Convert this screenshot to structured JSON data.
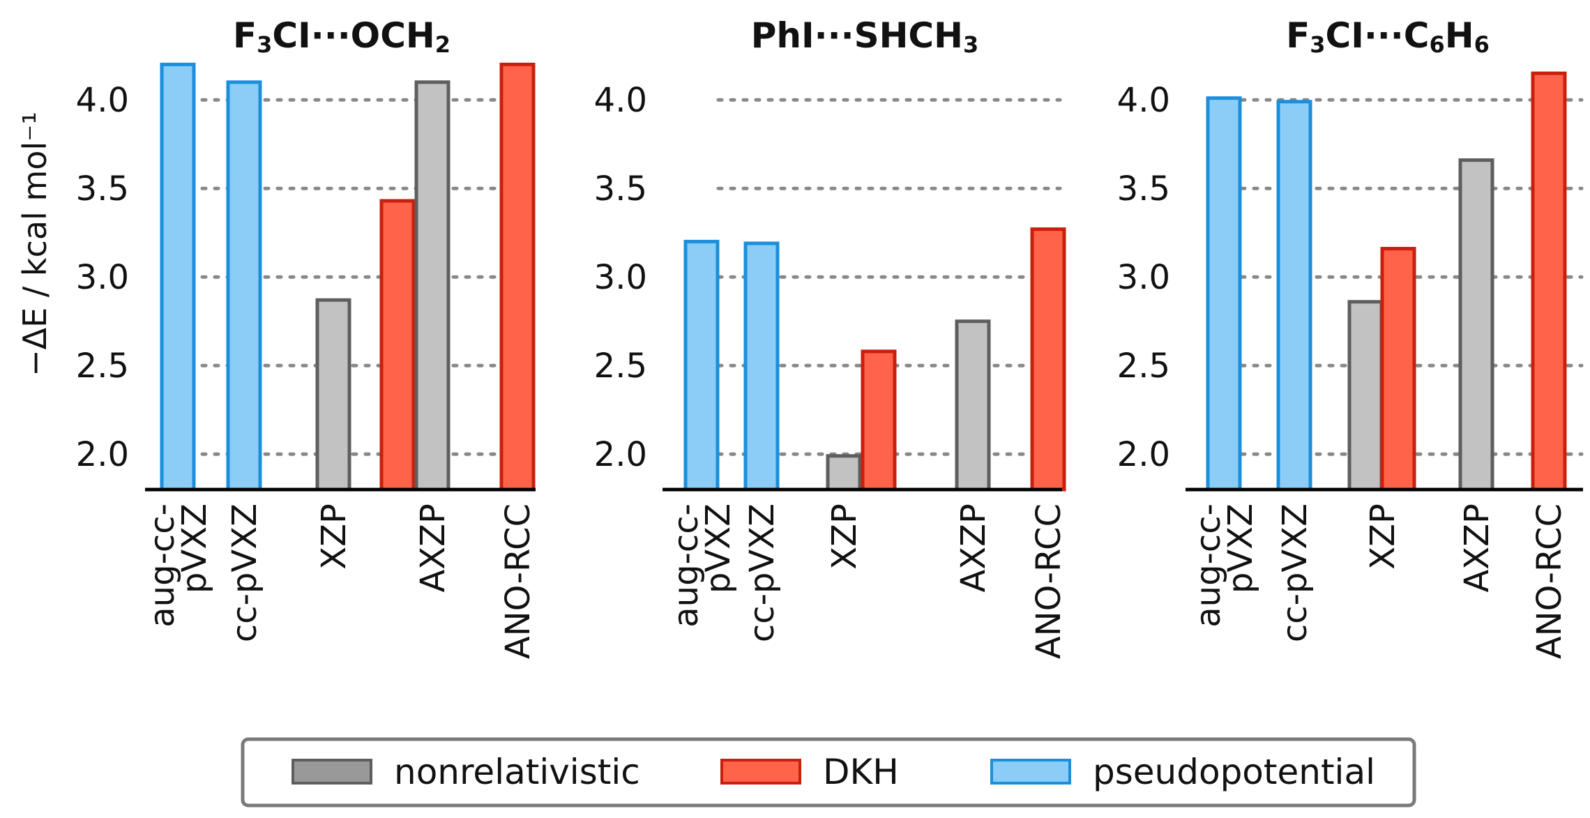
{
  "chart_data": {
    "type": "bar",
    "ylabel": "−ΔE / kcal mol⁻¹",
    "ylim": [
      1.8,
      4.25
    ],
    "yticks": [
      "2.0",
      "2.5",
      "3.0",
      "3.5",
      "4.0"
    ],
    "grid": true,
    "categories": [
      {
        "lines": [
          "aug-cc-",
          "pVXZ"
        ]
      },
      {
        "lines": [
          "cc-pVXZ"
        ]
      },
      {
        "lines": [
          "XZP"
        ]
      },
      {
        "lines": [
          "AXZP"
        ]
      },
      {
        "lines": [
          "ANO-RCC"
        ]
      }
    ],
    "colors": {
      "nonrelativistic": {
        "fill": "#c2c2c2",
        "stroke": "#5e5e5e"
      },
      "DKH": {
        "fill": "#ff634a",
        "stroke": "#c8200c"
      },
      "pseudopotential": {
        "fill": "#8ccdf8",
        "stroke": "#1b8fdc"
      }
    },
    "panels": [
      {
        "title": {
          "parts": [
            "F",
            "3",
            "CI···OCH",
            "2",
            ""
          ]
        },
        "bars": [
          {
            "category": "aug-cc-pVXZ",
            "series": "pseudopotential",
            "value": 4.2
          },
          {
            "category": "cc-pVXZ",
            "series": "pseudopotential",
            "value": 4.1
          },
          {
            "category": "XZP",
            "series": "nonrelativistic",
            "value": 2.87
          },
          {
            "category": "XZP",
            "series": "DKH",
            "value": 3.43
          },
          {
            "category": "AXZP",
            "series": "nonrelativistic",
            "value": 4.1
          },
          {
            "category": "ANO-RCC",
            "series": "DKH",
            "value": 4.2
          }
        ]
      },
      {
        "title": {
          "parts": [
            "PhI···SHCH",
            "3",
            ""
          ]
        },
        "bars": [
          {
            "category": "aug-cc-pVXZ",
            "series": "pseudopotential",
            "value": 3.2
          },
          {
            "category": "cc-pVXZ",
            "series": "pseudopotential",
            "value": 3.19
          },
          {
            "category": "XZP",
            "series": "nonrelativistic",
            "value": 1.99
          },
          {
            "category": "XZP",
            "series": "DKH",
            "value": 2.58
          },
          {
            "category": "AXZP",
            "series": "nonrelativistic",
            "value": 2.75
          },
          {
            "category": "ANO-RCC",
            "series": "DKH",
            "value": 3.27
          }
        ]
      },
      {
        "title": {
          "parts": [
            "F",
            "3",
            "CI···C",
            "6",
            "H",
            "6",
            ""
          ]
        },
        "bars": [
          {
            "category": "aug-cc-pVXZ",
            "series": "pseudopotential",
            "value": 4.01
          },
          {
            "category": "cc-pVXZ",
            "series": "pseudopotential",
            "value": 3.99
          },
          {
            "category": "XZP",
            "series": "nonrelativistic",
            "value": 2.86
          },
          {
            "category": "XZP",
            "series": "DKH",
            "value": 3.16
          },
          {
            "category": "AXZP",
            "series": "nonrelativistic",
            "value": 3.66
          },
          {
            "category": "ANO-RCC",
            "series": "DKH",
            "value": 4.15
          }
        ]
      }
    ],
    "legend": {
      "position": "bottom-center",
      "entries": [
        {
          "label": "nonrelativistic",
          "series": "nonrelativistic"
        },
        {
          "label": "DKH",
          "series": "DKH"
        },
        {
          "label": "pseudopotential",
          "series": "pseudopotential"
        }
      ]
    }
  }
}
